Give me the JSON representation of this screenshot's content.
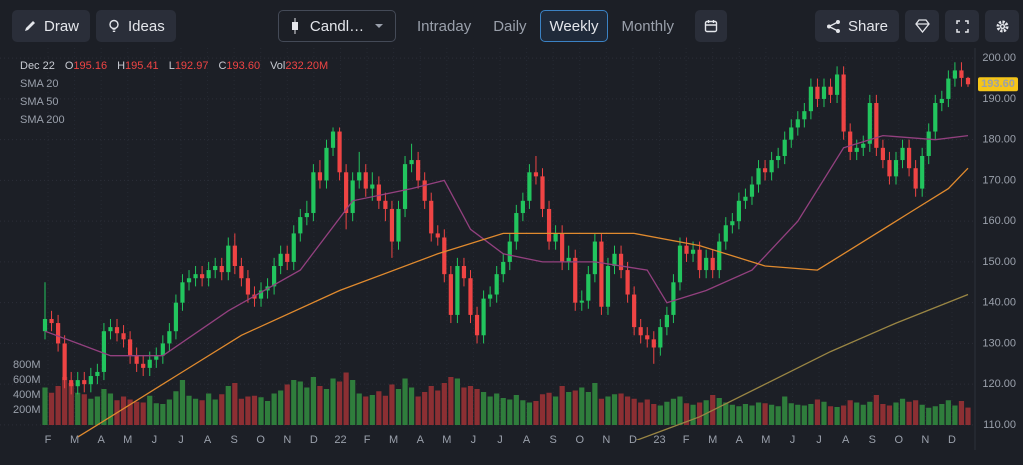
{
  "toolbar": {
    "draw": "Draw",
    "ideas": "Ideas",
    "chart_type": "Candl…",
    "intervals": [
      "Intraday",
      "Daily",
      "Weekly",
      "Monthly"
    ],
    "active_interval": 2,
    "share": "Share"
  },
  "chart_data": {
    "type": "candlestick",
    "legend": {
      "date": "Dec 22",
      "fields": [
        {
          "key": "O",
          "value": "195.16"
        },
        {
          "key": "H",
          "value": "195.41"
        },
        {
          "key": "L",
          "value": "192.97"
        },
        {
          "key": "C",
          "value": "193.60"
        },
        {
          "key": "Vol",
          "value": "232.20M"
        }
      ]
    },
    "price_label": "193.60",
    "up_color": "#22c55e",
    "down_color": "#ef4444",
    "up_volume_color": "#2f7d3c",
    "down_volume_color": "#8c2f33",
    "ylim": [
      106.3,
      202.5
    ],
    "yticks": [
      {
        "value": 110,
        "label": "110.00"
      },
      {
        "value": 120,
        "label": "120.00"
      },
      {
        "value": 130,
        "label": "130.00"
      },
      {
        "value": 140,
        "label": "140.00"
      },
      {
        "value": 150,
        "label": "150.00"
      },
      {
        "value": 160,
        "label": "160.00"
      },
      {
        "value": 170,
        "label": "170.00"
      },
      {
        "value": 180,
        "label": "180.00"
      },
      {
        "value": 190,
        "label": "190.00"
      },
      {
        "value": 200,
        "label": "200.00"
      }
    ],
    "volume_lim": [
      0,
      5000
    ],
    "volume_ticks": [
      {
        "value": 200,
        "label": "200M"
      },
      {
        "value": 400,
        "label": "400M"
      },
      {
        "value": 600,
        "label": "600M"
      },
      {
        "value": 800,
        "label": "800M"
      }
    ],
    "month_labels": [
      "F",
      "M",
      "A",
      "M",
      "J",
      "J",
      "A",
      "S",
      "O",
      "N",
      "D",
      "22",
      "F",
      "M",
      "A",
      "M",
      "J",
      "J",
      "A",
      "S",
      "O",
      "N",
      "D",
      "23",
      "F",
      "M",
      "A",
      "M",
      "J",
      "J",
      "A",
      "S",
      "O",
      "N",
      "D"
    ],
    "open": [
      133,
      136,
      135,
      130,
      121,
      119.5,
      121,
      120,
      122,
      123,
      133,
      134,
      132.5,
      131,
      127,
      125,
      124,
      126,
      127,
      130,
      133,
      140,
      145,
      146,
      147,
      146,
      148,
      149,
      147.5,
      154,
      149,
      146,
      142,
      141,
      143,
      144,
      149,
      152,
      150,
      157,
      161,
      162,
      172,
      170,
      178,
      182,
      172,
      162,
      170,
      172,
      168,
      169,
      165,
      163,
      155,
      163,
      174,
      175,
      170,
      165,
      157,
      156,
      147,
      137,
      149,
      146,
      137,
      132,
      141,
      142,
      147,
      150,
      155,
      162,
      165,
      172,
      171,
      163,
      155,
      157,
      150,
      151,
      140,
      140.5,
      147,
      155,
      139,
      149,
      152,
      148,
      142,
      134,
      132,
      131,
      129,
      134,
      137,
      145,
      154,
      152,
      153,
      148,
      151,
      148,
      155,
      159,
      160,
      165,
      166,
      169,
      173,
      172,
      175,
      176,
      180,
      183,
      185,
      187,
      193,
      190,
      193,
      191,
      196,
      182,
      177,
      178,
      179,
      189,
      178,
      175,
      171,
      175,
      178,
      173,
      168,
      176,
      182,
      189,
      190,
      195,
      197,
      195.16
    ],
    "high": [
      145,
      138,
      137,
      132,
      123,
      123,
      123,
      124,
      125,
      135,
      136,
      136,
      134.5,
      133,
      129,
      127,
      128,
      129,
      132,
      135,
      142,
      147,
      148,
      149,
      149,
      150,
      151,
      151,
      156,
      157,
      151,
      148,
      144,
      145,
      146,
      151,
      154,
      154,
      159,
      163,
      165,
      174,
      175,
      180,
      183,
      183,
      174,
      172,
      177,
      174,
      172,
      171,
      167,
      165,
      165,
      176,
      179,
      177,
      172,
      167,
      159,
      158,
      149,
      151,
      151,
      148,
      139,
      143,
      144,
      149,
      152,
      157,
      164,
      167,
      174,
      176,
      173,
      165,
      159,
      159,
      154,
      153,
      143,
      149,
      157,
      157,
      151,
      154,
      154,
      150,
      144,
      136,
      134,
      133,
      136,
      139,
      147,
      156,
      156,
      155,
      155,
      153,
      153,
      157,
      161,
      162,
      167,
      168,
      171,
      175,
      175,
      177,
      178,
      182,
      185,
      187,
      189,
      195,
      195,
      195,
      195,
      198,
      198,
      184,
      180,
      181,
      191,
      191,
      180,
      177,
      177,
      180,
      180,
      175,
      178,
      184,
      191,
      192,
      197,
      199,
      199,
      195.41
    ],
    "low": [
      131,
      133,
      128,
      119,
      117.5,
      117.5,
      118,
      118,
      120,
      121,
      131,
      130.5,
      129,
      125,
      123,
      122,
      122,
      124,
      125,
      128,
      131,
      138,
      143,
      144,
      144,
      144,
      146,
      145.5,
      145.5,
      147,
      144,
      140,
      139,
      139,
      141,
      142,
      147,
      148,
      148,
      155,
      159,
      160,
      168,
      168,
      176,
      170,
      158,
      160,
      168,
      166,
      165,
      163,
      160,
      151,
      153,
      161,
      172,
      168,
      163,
      155,
      154,
      145,
      135,
      135,
      144,
      135,
      130,
      130,
      139,
      140,
      145,
      148,
      153,
      160,
      163,
      169,
      161,
      153,
      153,
      148,
      148,
      138,
      138,
      138.5,
      145,
      137,
      137,
      147,
      146,
      140,
      132,
      130,
      129,
      125,
      127,
      132,
      135,
      143,
      150,
      150,
      146,
      146,
      146,
      146,
      153,
      157,
      158,
      163,
      164,
      167,
      170,
      170,
      173,
      174,
      178,
      181,
      183,
      185,
      188,
      188,
      189,
      189,
      180,
      175,
      175,
      176,
      177,
      176,
      173,
      169,
      169,
      173,
      171,
      166,
      166,
      174,
      180,
      187,
      188,
      193,
      193,
      192.97
    ],
    "close": [
      136,
      135,
      130,
      121,
      119.5,
      121,
      120,
      122,
      123,
      133,
      134,
      132.5,
      131,
      127,
      125,
      124,
      126,
      127,
      130,
      133,
      140,
      145,
      146,
      147,
      146,
      148,
      149,
      147.5,
      154,
      149,
      146,
      142,
      141,
      143,
      144,
      149,
      152,
      150,
      157,
      161,
      162,
      172,
      170,
      178,
      182,
      172,
      162,
      170,
      172,
      168,
      169,
      165,
      163,
      155,
      163,
      174,
      175,
      170,
      165,
      157,
      156,
      147,
      137,
      149,
      146,
      137,
      132,
      141,
      142,
      147,
      150,
      155,
      162,
      165,
      172,
      171,
      163,
      155,
      157,
      150,
      151,
      140,
      140.5,
      147,
      155,
      139,
      149,
      152,
      148,
      142,
      134,
      132,
      131,
      129,
      134,
      137,
      145,
      154,
      152,
      153,
      148,
      151,
      148,
      155,
      159,
      160,
      165,
      166,
      169,
      173,
      172,
      175,
      176,
      180,
      183,
      185,
      187,
      193,
      190,
      193,
      191,
      196,
      182,
      177,
      178,
      179,
      189,
      178,
      175,
      171,
      175,
      178,
      173,
      168,
      176,
      182,
      189,
      190,
      195,
      197,
      195.16,
      193.6
    ],
    "volume": [
      500,
      430,
      520,
      640,
      560,
      430,
      410,
      350,
      380,
      480,
      420,
      330,
      380,
      340,
      310,
      300,
      390,
      290,
      280,
      340,
      450,
      600,
      390,
      350,
      330,
      420,
      340,
      410,
      520,
      560,
      350,
      380,
      390,
      370,
      320,
      420,
      460,
      540,
      600,
      580,
      500,
      640,
      520,
      480,
      620,
      580,
      700,
      600,
      420,
      380,
      400,
      450,
      390,
      540,
      480,
      620,
      500,
      380,
      440,
      520,
      460,
      560,
      640,
      620,
      500,
      520,
      480,
      440,
      380,
      420,
      360,
      340,
      400,
      330,
      300,
      320,
      410,
      430,
      380,
      520,
      440,
      460,
      500,
      440,
      560,
      350,
      380,
      410,
      420,
      380,
      350,
      300,
      340,
      280,
      260,
      310,
      350,
      380,
      290,
      270,
      300,
      330,
      400,
      360,
      300,
      270,
      250,
      280,
      260,
      300,
      290,
      270,
      250,
      380,
      290,
      270,
      260,
      280,
      340,
      310,
      250,
      240,
      260,
      330,
      300,
      270,
      310,
      400,
      280,
      260,
      300,
      350,
      310,
      330,
      270,
      230,
      250,
      280,
      330,
      260,
      320,
      232.2
    ],
    "sma": [
      {
        "name": "SMA 20",
        "color": "#93407f",
        "x": [
          0,
          5,
          10,
          18,
          28,
          39,
          47,
          56,
          61,
          65,
          70,
          76,
          84,
          92,
          95,
          101,
          108,
          115,
          122,
          128,
          136,
          141
        ],
        "values": [
          133,
          130,
          127,
          127,
          138,
          148,
          165,
          168,
          170,
          158,
          152,
          150,
          150,
          148,
          140,
          143,
          148,
          160,
          178,
          181,
          180,
          181
        ]
      },
      {
        "name": "SMA 50",
        "color": "#e08a2e",
        "x": [
          5,
          8,
          20,
          30,
          45,
          60,
          70,
          80,
          90,
          100,
          110,
          118,
          125,
          132,
          138,
          141
        ],
        "values": [
          107,
          110,
          122,
          132,
          143,
          152,
          157,
          157,
          157,
          154,
          149,
          148,
          155,
          162,
          168,
          173
        ]
      },
      {
        "name": "SMA 200",
        "color": "#9a8644",
        "x": [
          90,
          95,
          100,
          110,
          120,
          130,
          141
        ],
        "values": [
          106,
          109,
          112,
          120,
          128,
          135,
          142
        ]
      }
    ]
  }
}
